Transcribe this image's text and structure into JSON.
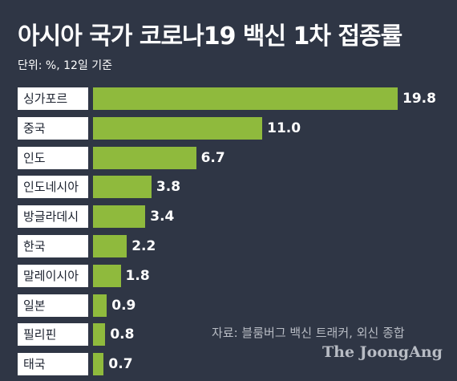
{
  "title": "아시아 국가 코로나19 백신 1차 접종률",
  "subtitle": "단위: %, 12일 기준",
  "source": "자료: 블룸버그 백신 트래커, 외신 종합",
  "brand": "The JoongAng",
  "colors": {
    "background": "#2f3645",
    "bar": "#8fba3d",
    "label_bg": "#ffffff",
    "text": "#ffffff"
  },
  "chart_data": {
    "type": "bar",
    "orientation": "horizontal",
    "categories": [
      "싱가포르",
      "중국",
      "인도",
      "인도네시아",
      "방글라데시",
      "한국",
      "말레이시아",
      "일본",
      "필리핀",
      "태국"
    ],
    "values": [
      19.8,
      11.0,
      6.7,
      3.8,
      3.4,
      2.2,
      1.8,
      0.9,
      0.8,
      0.7
    ],
    "value_labels": [
      "19.8",
      "11.0",
      "6.7",
      "3.8",
      "3.4",
      "2.2",
      "1.8",
      "0.9",
      "0.8",
      "0.7"
    ],
    "title": "아시아 국가 코로나19 백신 1차 접종률",
    "unit": "%",
    "xlim": [
      0,
      19.8
    ],
    "grid": false,
    "legend": "none"
  }
}
